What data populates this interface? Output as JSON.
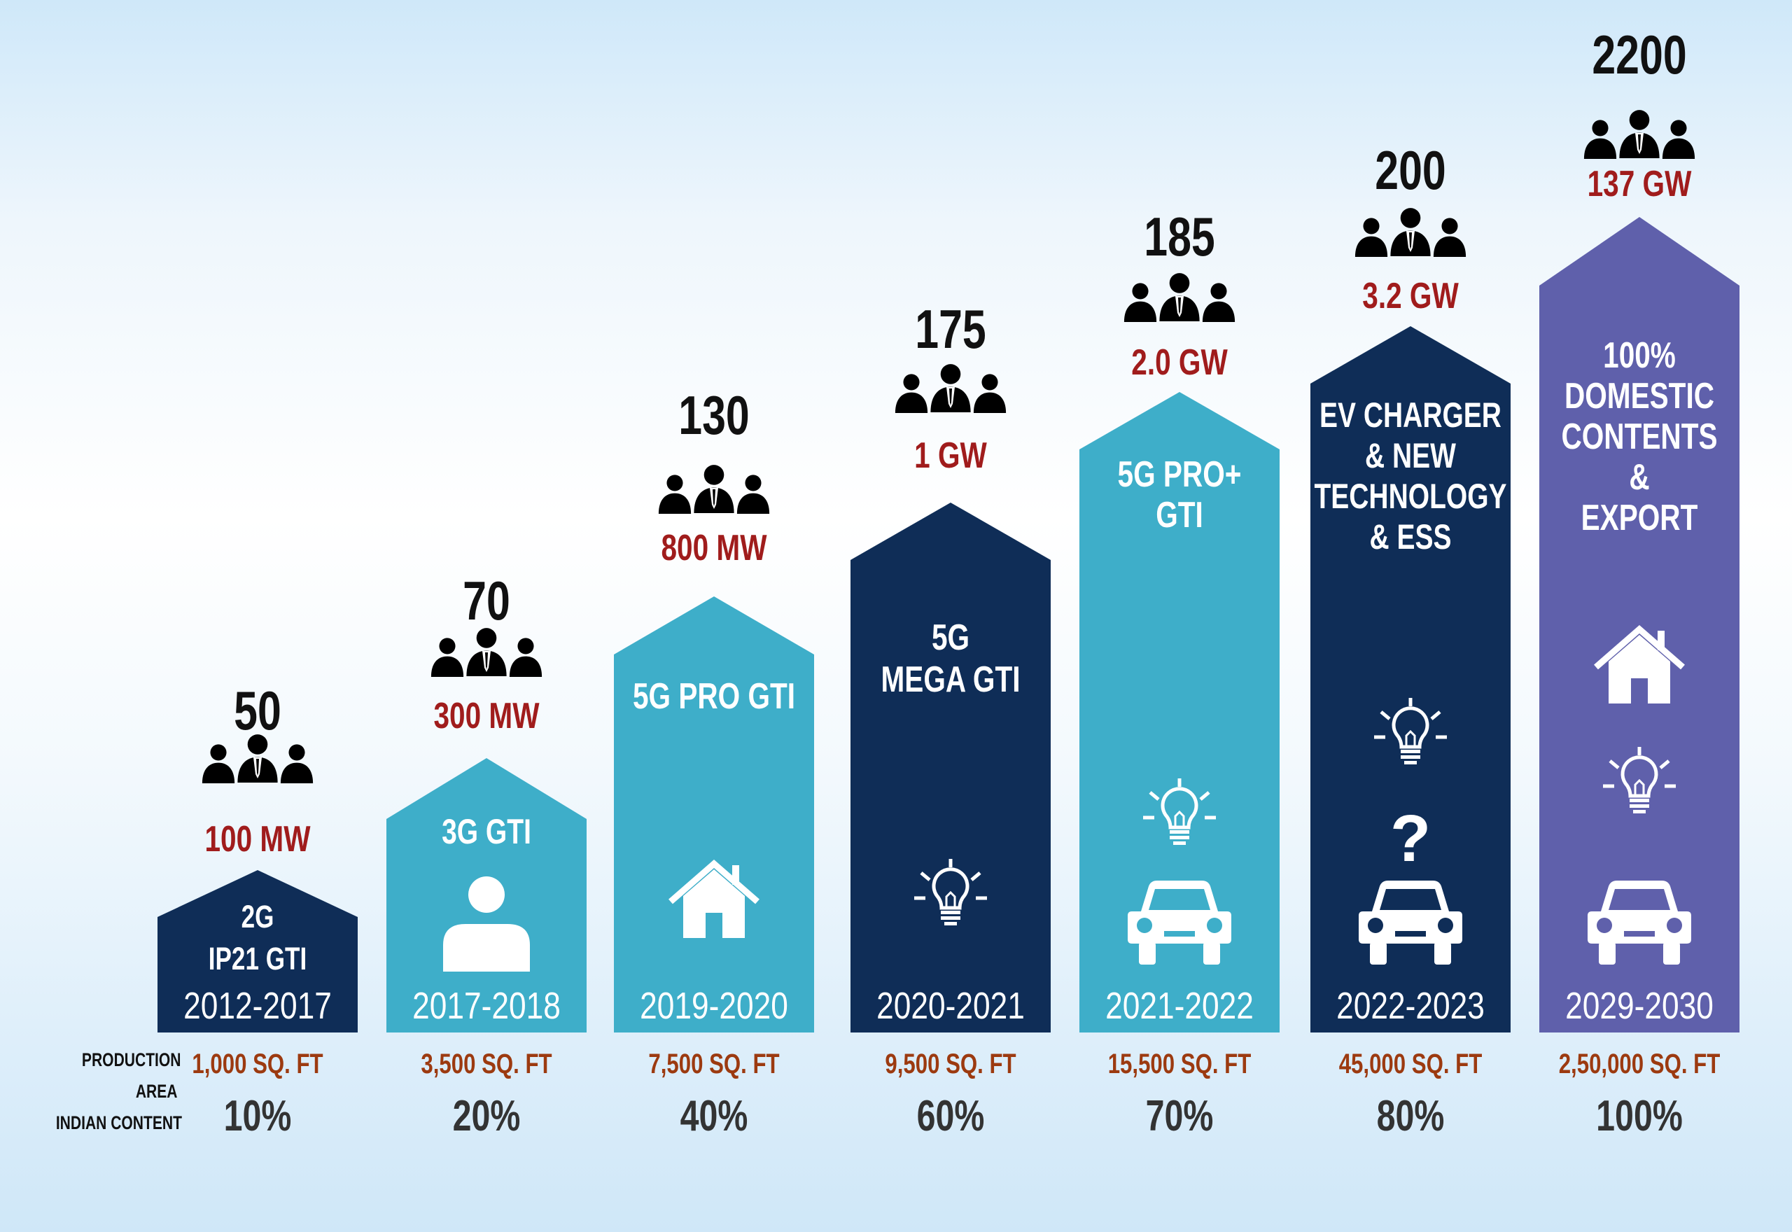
{
  "colors": {
    "dark_navy": "#0f2d57",
    "light_blue": "#3eaec9",
    "purple": "#5f60ab",
    "capacity_red": "#a01c1c",
    "area_orange": "#9c3a10",
    "text_dark": "#111111",
    "percent_gray": "#333333"
  },
  "row_labels": {
    "production": "PRODUCTION",
    "area": "AREA",
    "indian_content": "INDIAN CONTENT"
  },
  "chart_data": {
    "type": "bar",
    "categories": [
      "2012-2017",
      "2017-2018",
      "2019-2020",
      "2020-2021",
      "2021-2022",
      "2022-2023",
      "2029-2030"
    ],
    "series": [
      {
        "name": "employees",
        "values": [
          50,
          70,
          130,
          175,
          185,
          200,
          2200
        ]
      }
    ],
    "capacity": [
      "100 MW",
      "300 MW",
      "800 MW",
      "1 GW",
      "2.0 GW",
      "3.2 GW",
      "137 GW"
    ],
    "production_area": [
      "1,000 SQ. FT",
      "3,500 SQ. FT",
      "7,500 SQ. FT",
      "9,500 SQ. FT",
      "15,500 SQ. FT",
      "45,000 SQ. FT",
      "2,50,000 SQ. FT"
    ],
    "indian_content": [
      "10%",
      "20%",
      "40%",
      "60%",
      "70%",
      "80%",
      "100%"
    ],
    "bars": [
      {
        "year": "2012-2017",
        "people": "50",
        "capacity": "100 MW",
        "product_lines": [
          "2G",
          "IP21 GTI"
        ],
        "color": "#0f2d57",
        "icons": []
      },
      {
        "year": "2017-2018",
        "people": "70",
        "capacity": "300 MW",
        "product_lines": [
          "3G GTI"
        ],
        "color": "#3eaec9",
        "icons": [
          "person-icon"
        ]
      },
      {
        "year": "2019-2020",
        "people": "130",
        "capacity": "800 MW",
        "product_lines": [
          "5G PRO GTI"
        ],
        "color": "#3eaec9",
        "icons": [
          "home-icon"
        ]
      },
      {
        "year": "2020-2021",
        "people": "175",
        "capacity": "1 GW",
        "product_lines": [
          "5G",
          "MEGA GTI"
        ],
        "color": "#0f2d57",
        "icons": [
          "bulb-icon"
        ]
      },
      {
        "year": "2021-2022",
        "people": "185",
        "capacity": "2.0 GW",
        "product_lines": [
          "5G PRO+",
          "GTI"
        ],
        "color": "#3eaec9",
        "icons": [
          "bulb-icon",
          "car-icon"
        ]
      },
      {
        "year": "2022-2023",
        "people": "200",
        "capacity": "3.2 GW",
        "product_lines": [
          "EV CHARGER",
          "& NEW",
          "TECHNOLOGY",
          "& ESS"
        ],
        "color": "#0f2d57",
        "icons": [
          "bulb-icon",
          "question-icon",
          "car-icon"
        ]
      },
      {
        "year": "2029-2030",
        "people": "2200",
        "capacity": "137 GW",
        "product_lines": [
          "100%",
          "DOMESTIC",
          "CONTENTS",
          "&",
          "EXPORT"
        ],
        "color": "#5f60ab",
        "icons": [
          "home-icon",
          "bulb-icon",
          "car-icon"
        ]
      }
    ]
  }
}
